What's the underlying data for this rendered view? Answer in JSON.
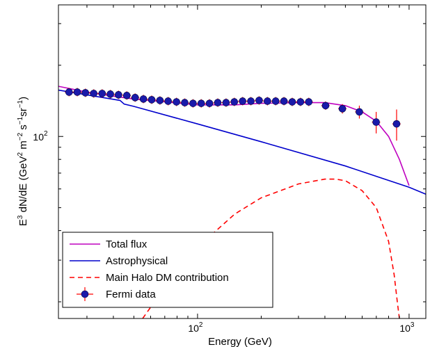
{
  "chart_data": {
    "type": "line",
    "xlabel": "Energy (GeV)",
    "ylabel_parts": {
      "e": "E",
      "e_exp": "3",
      "mid": " dN/dE (GeV",
      "gev_exp": "2",
      "m": " m",
      "m_exp": "−2",
      "s": " s",
      "s_exp": "−1",
      "sr": "sr",
      "sr_exp": "−1",
      "close": ")"
    },
    "x_scale": "log",
    "y_scale": "log",
    "xlim": [
      22,
      1200
    ],
    "ylim": [
      17,
      360
    ],
    "grid": false,
    "legend_position": "bottom-left",
    "x_ticks": [
      {
        "value": 100,
        "base": "10",
        "exp": "2"
      },
      {
        "value": 1000,
        "base": "10",
        "exp": "3"
      }
    ],
    "y_ticks": [
      {
        "value": 100,
        "base": "10",
        "exp": "2"
      }
    ],
    "series": [
      {
        "name": "Total flux",
        "color": "#bf00bf",
        "style": "solid",
        "x": [
          22,
          30,
          40,
          50,
          70,
          100,
          150,
          200,
          300,
          400,
          500,
          600,
          700,
          800,
          900,
          1000
        ],
        "y": [
          163,
          154,
          148,
          144,
          140,
          136,
          136,
          138,
          139,
          139,
          135,
          127,
          116,
          100,
          80,
          62
        ]
      },
      {
        "name": "Astrophysical",
        "color": "#0000cc",
        "style": "solid",
        "x": [
          22,
          43,
          45,
          50,
          100,
          200,
          500,
          1000,
          1200
        ],
        "y": [
          157,
          142,
          137,
          134,
          113,
          95,
          75,
          61,
          57
        ]
      },
      {
        "name": "Main Halo DM contribution",
        "color": "#ff0000",
        "style": "dashed",
        "x": [
          55,
          70,
          100,
          150,
          200,
          300,
          400,
          450,
          500,
          600,
          700,
          800,
          850,
          880,
          900
        ],
        "y": [
          17,
          23,
          34,
          47,
          55,
          63,
          66,
          66,
          65,
          59,
          50,
          36,
          26,
          20,
          17
        ]
      },
      {
        "name": "Fermi data",
        "marker_color": "#1a1aaa",
        "errorbar_color": "#ff0000",
        "x": [
          24.7,
          27.0,
          29.5,
          32.3,
          35.4,
          38.7,
          42.3,
          46.3,
          50.7,
          55.5,
          60.7,
          66.4,
          72.6,
          79.5,
          87.0,
          95.2,
          104.1,
          113.9,
          124.6,
          136.4,
          149.2,
          163.3,
          178.7,
          195.5,
          214.0,
          234.1,
          256.2,
          280.3,
          306.7,
          335.6,
          403.0,
          484.0,
          582.0,
          699.0,
          873.0
        ],
        "y": [
          154,
          154,
          153,
          152,
          152,
          151,
          150,
          149,
          146,
          144,
          143,
          142,
          141,
          140,
          139,
          138,
          138,
          138,
          139,
          139,
          140,
          141,
          141,
          142,
          141,
          141,
          141,
          140,
          140,
          140,
          135,
          131,
          127,
          115,
          113
        ],
        "yerr": [
          2,
          2,
          2,
          2,
          2,
          2,
          2,
          2,
          2,
          2,
          2,
          2,
          2,
          2,
          2,
          2,
          2,
          2,
          2,
          2,
          2,
          2,
          2,
          2,
          2,
          2,
          2,
          2,
          2,
          3,
          5,
          6,
          8,
          12,
          17
        ],
        "xerr_frac": 0.045
      }
    ]
  }
}
